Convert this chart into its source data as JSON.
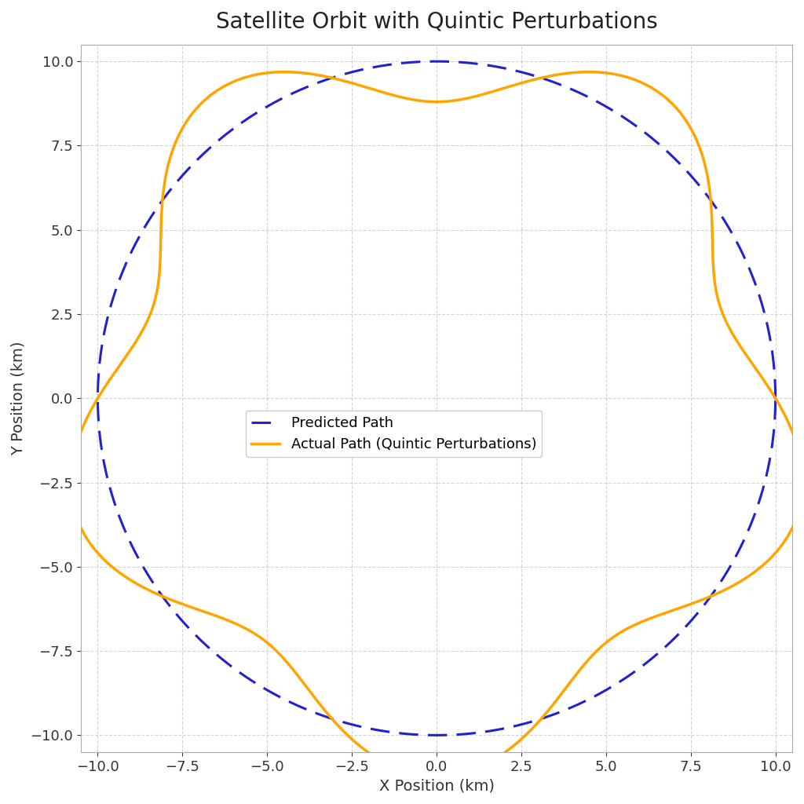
{
  "title": "Satellite Orbit with Quintic Perturbations",
  "xlabel": "X Position (km)",
  "ylabel": "Y Position (km)",
  "xlim": [
    -10.5,
    10.5
  ],
  "ylim": [
    -10.5,
    10.5
  ],
  "xticks": [
    -10.0,
    -7.5,
    -5.0,
    -2.5,
    0.0,
    2.5,
    5.0,
    7.5,
    10.0
  ],
  "yticks": [
    -10.0,
    -7.5,
    -5.0,
    -2.5,
    0.0,
    2.5,
    5.0,
    7.5,
    10.0
  ],
  "predicted_color": "#2222cc",
  "actual_color": "#FFA500",
  "predicted_label": "Predicted Path",
  "actual_label": "Actual Path (Quintic Perturbations)",
  "predicted_linewidth": 2.2,
  "actual_linewidth": 2.5,
  "background_color": "#ffffff",
  "grid_color": "#aaaaaa",
  "title_fontsize": 20,
  "label_fontsize": 14,
  "tick_fontsize": 13,
  "legend_fontsize": 13
}
